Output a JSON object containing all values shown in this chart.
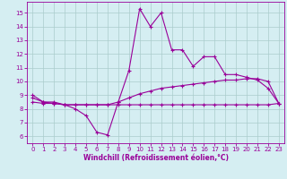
{
  "line1_x": [
    0,
    1,
    2,
    3,
    4,
    5,
    6,
    7,
    8,
    9,
    10,
    11,
    12,
    13,
    14,
    15,
    16,
    17,
    18,
    19,
    20,
    21,
    22,
    23
  ],
  "line1_y": [
    9.0,
    8.5,
    8.5,
    8.3,
    8.0,
    7.5,
    6.3,
    6.1,
    8.5,
    10.8,
    15.3,
    14.0,
    15.0,
    12.3,
    12.3,
    11.1,
    11.8,
    11.8,
    10.5,
    10.5,
    10.3,
    10.1,
    9.5,
    8.4
  ],
  "line2_x": [
    0,
    1,
    2,
    3,
    4,
    5,
    6,
    7,
    8,
    9,
    10,
    11,
    12,
    13,
    14,
    15,
    16,
    17,
    18,
    19,
    20,
    21,
    22,
    23
  ],
  "line2_y": [
    8.5,
    8.4,
    8.4,
    8.3,
    8.3,
    8.3,
    8.3,
    8.3,
    8.3,
    8.3,
    8.3,
    8.3,
    8.3,
    8.3,
    8.3,
    8.3,
    8.3,
    8.3,
    8.3,
    8.3,
    8.3,
    8.3,
    8.3,
    8.4
  ],
  "line3_x": [
    0,
    1,
    2,
    3,
    4,
    5,
    6,
    7,
    8,
    9,
    10,
    11,
    12,
    13,
    14,
    15,
    16,
    17,
    18,
    19,
    20,
    21,
    22,
    23
  ],
  "line3_y": [
    8.8,
    8.5,
    8.4,
    8.3,
    8.3,
    8.3,
    8.3,
    8.3,
    8.5,
    8.8,
    9.1,
    9.3,
    9.5,
    9.6,
    9.7,
    9.8,
    9.9,
    10.0,
    10.1,
    10.1,
    10.2,
    10.2,
    10.0,
    8.4
  ],
  "line_color": "#990099",
  "bg_color": "#d5eef2",
  "grid_color": "#aacccc",
  "xlabel": "Windchill (Refroidissement éolien,°C)",
  "xlim": [
    -0.5,
    23.5
  ],
  "ylim": [
    5.5,
    15.8
  ],
  "xticks": [
    0,
    1,
    2,
    3,
    4,
    5,
    6,
    7,
    8,
    9,
    10,
    11,
    12,
    13,
    14,
    15,
    16,
    17,
    18,
    19,
    20,
    21,
    22,
    23
  ],
  "yticks": [
    6,
    7,
    8,
    9,
    10,
    11,
    12,
    13,
    14,
    15
  ],
  "xlabel_fontsize": 5.5,
  "tick_fontsize": 5.0,
  "linewidth": 0.8,
  "markersize": 3.5,
  "markeredgewidth": 0.8
}
